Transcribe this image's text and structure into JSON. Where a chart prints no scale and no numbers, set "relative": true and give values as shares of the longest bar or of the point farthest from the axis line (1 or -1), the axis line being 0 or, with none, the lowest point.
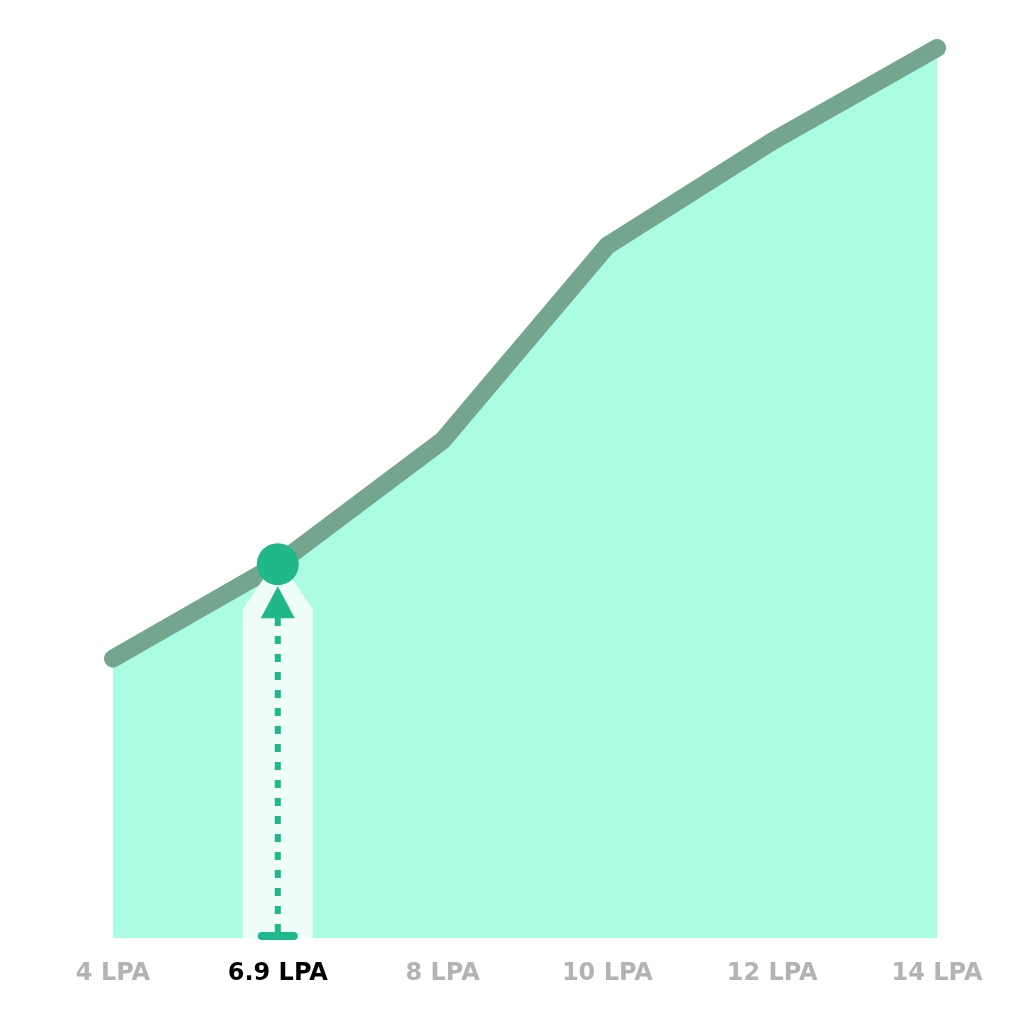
{
  "chart_data": {
    "type": "area",
    "relative": true,
    "categories": [
      "4 LPA",
      "6.9 LPA",
      "8 LPA",
      "10 LPA",
      "12 LPA",
      "14 LPA"
    ],
    "series": [
      {
        "color": "#74a68f",
        "values": [
          0.314,
          0.42,
          0.559,
          0.778,
          0.895,
          1
        ]
      }
    ],
    "ref_lines": [
      {
        "axis": "x",
        "value": "6.9 LPA",
        "color": "#20b78a",
        "line_style": "dotted"
      }
    ],
    "bands": [
      {
        "axis": "x",
        "from": "6.9 LPA",
        "to": "6.9 LPA",
        "color": "#effdf8"
      }
    ]
  }
}
